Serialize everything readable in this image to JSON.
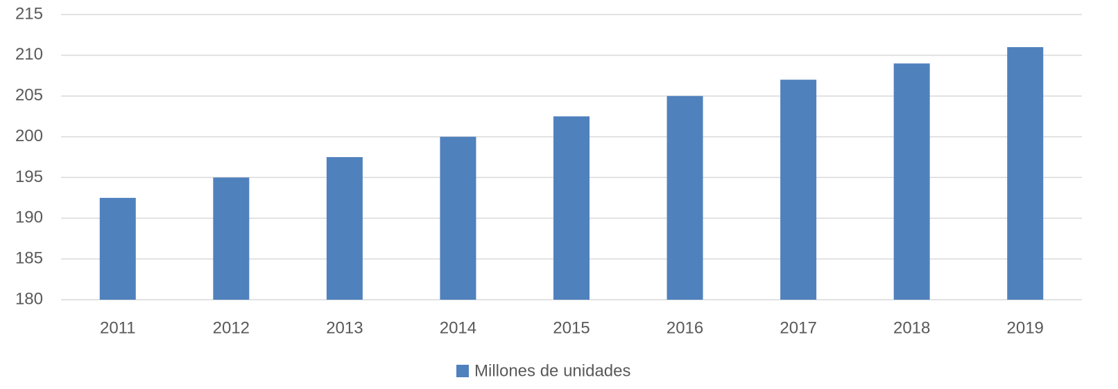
{
  "chart_data": {
    "type": "bar",
    "categories": [
      "2011",
      "2012",
      "2013",
      "2014",
      "2015",
      "2016",
      "2017",
      "2018",
      "2019"
    ],
    "series": [
      {
        "name": "Millones de unidades",
        "color": "#4f81bd",
        "values": [
          192.5,
          195,
          197.5,
          200,
          202.5,
          205,
          207,
          209,
          211
        ]
      }
    ],
    "ylim": [
      180,
      215
    ],
    "yticks": [
      180,
      185,
      190,
      195,
      200,
      205,
      210,
      215
    ],
    "grid": true,
    "legend": "bottom"
  }
}
